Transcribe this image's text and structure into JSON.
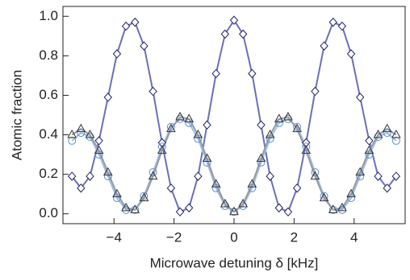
{
  "chart_data": {
    "type": "scatter",
    "x_label": "Microwave detuning δ [kHz]",
    "y_label": "Atomic fraction",
    "x": [
      -5.4,
      -5.1,
      -4.8,
      -4.5,
      -4.2,
      -3.9,
      -3.6,
      -3.3,
      -3.0,
      -2.7,
      -2.4,
      -2.1,
      -1.8,
      -1.5,
      -1.2,
      -0.9,
      -0.6,
      -0.3,
      0,
      0.3,
      0.6,
      0.9,
      1.2,
      1.5,
      1.8,
      2.1,
      2.4,
      2.7,
      3.0,
      3.3,
      3.6,
      3.9,
      4.2,
      4.5,
      4.8,
      5.1,
      5.4
    ],
    "series": [
      {
        "marker": "diamond",
        "color": "#1c1c6b",
        "line_color": "#6b6fb8",
        "values": [
          0.19,
          0.13,
          0.19,
          0.37,
          0.59,
          0.81,
          0.95,
          0.97,
          0.85,
          0.62,
          0.36,
          0.13,
          0.01,
          0.03,
          0.19,
          0.45,
          0.71,
          0.91,
          0.98,
          0.91,
          0.71,
          0.45,
          0.19,
          0.03,
          0.01,
          0.13,
          0.36,
          0.62,
          0.85,
          0.97,
          0.95,
          0.81,
          0.59,
          0.37,
          0.19,
          0.13,
          0.19
        ]
      },
      {
        "marker": "circle",
        "color": "#5b8fd6",
        "line_color": "#9fbfe8",
        "values": [
          0.37,
          0.41,
          0.39,
          0.3,
          0.19,
          0.08,
          0.02,
          0.02,
          0.09,
          0.21,
          0.34,
          0.44,
          0.48,
          0.46,
          0.38,
          0.26,
          0.13,
          0.04,
          0.01,
          0.04,
          0.13,
          0.26,
          0.38,
          0.46,
          0.48,
          0.44,
          0.34,
          0.21,
          0.09,
          0.02,
          0.02,
          0.08,
          0.19,
          0.3,
          0.39,
          0.41,
          0.37
        ]
      },
      {
        "marker": "triangle",
        "color": "#333333",
        "line_color": "#9a9a9a",
        "values": [
          0.4,
          0.43,
          0.4,
          0.32,
          0.21,
          0.1,
          0.03,
          0.02,
          0.08,
          0.19,
          0.32,
          0.43,
          0.49,
          0.48,
          0.4,
          0.28,
          0.15,
          0.05,
          0.01,
          0.05,
          0.15,
          0.28,
          0.4,
          0.48,
          0.49,
          0.43,
          0.32,
          0.19,
          0.08,
          0.02,
          0.03,
          0.1,
          0.21,
          0.32,
          0.4,
          0.43,
          0.4
        ]
      }
    ],
    "xlim": [
      -5.7,
      5.7
    ],
    "ylim": [
      -0.05,
      1.05
    ],
    "xticks": [
      {
        "value": -4,
        "label": "−4"
      },
      {
        "value": -2,
        "label": "−2"
      },
      0,
      2,
      4
    ],
    "yticks": [
      {
        "value": 0,
        "label": "0.0"
      },
      {
        "value": 0.2,
        "label": "0.2"
      },
      {
        "value": 0.4,
        "label": "0.4"
      },
      {
        "value": 0.6,
        "label": "0.6"
      },
      {
        "value": 0.8,
        "label": "0.8"
      },
      {
        "value": 1,
        "label": "1.0"
      }
    ],
    "grid": false
  }
}
